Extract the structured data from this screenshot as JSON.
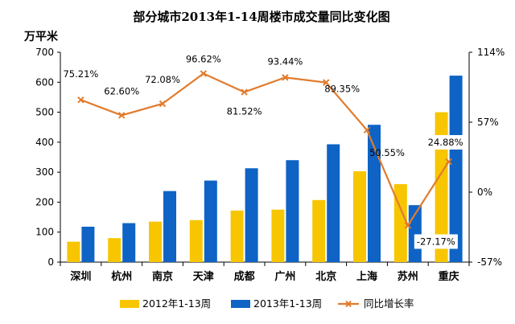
{
  "chart_data": {
    "type": "bar",
    "title": "部分城市2013年1-14周楼市成交量同比变化图",
    "ylabel": "万平米",
    "ylim": [
      0,
      700
    ],
    "yticks": [
      "0",
      "100",
      "200",
      "300",
      "400",
      "500",
      "600",
      "700"
    ],
    "y2ticks": [
      "-57%",
      "0%",
      "57%",
      "114%"
    ],
    "y2lim": [
      -57,
      114
    ],
    "categories": [
      "深圳",
      "杭州",
      "南京",
      "天津",
      "成都",
      "广州",
      "北京",
      "上海",
      "苏州",
      "重庆"
    ],
    "series": [
      {
        "name": "2012年1-13周",
        "type": "bar",
        "axis": "left",
        "values": [
          68,
          80,
          135,
          140,
          172,
          175,
          207,
          303,
          260,
          500
        ]
      },
      {
        "name": "2013年1-13周",
        "type": "bar",
        "axis": "left",
        "values": [
          118,
          130,
          237,
          272,
          313,
          340,
          393,
          458,
          190,
          622
        ]
      },
      {
        "name": "同比增长率",
        "type": "line",
        "axis": "right",
        "values": [
          75.21,
          62.6,
          72.08,
          96.62,
          81.52,
          93.44,
          89.35,
          50.55,
          -27.17,
          24.88
        ],
        "labels": [
          "75.21%",
          "62.60%",
          "72.08%",
          "96.62%",
          "81.52%",
          "93.44%",
          "89.35%",
          "50.55%",
          "-27.17%",
          "24.88%"
        ]
      }
    ],
    "legend_position": "bottom",
    "colors": {
      "bar2012": "#f7c600",
      "bar2013": "#0e63c5",
      "line": "#e17b2c"
    }
  }
}
